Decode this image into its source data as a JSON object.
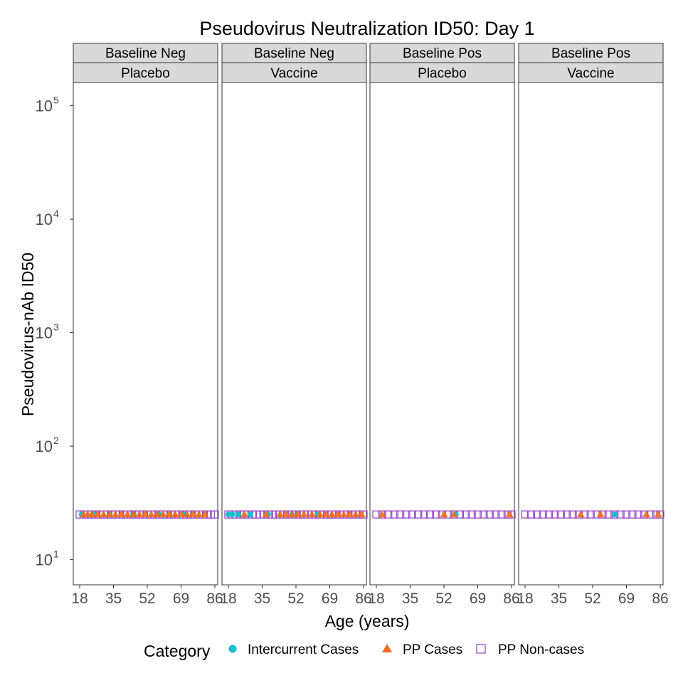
{
  "chart_data": {
    "type": "scatter",
    "title": "Pseudovirus Neutralization ID50: Day 1",
    "xlabel": "Age (years)",
    "ylabel": "Pseudovirus-nAb ID50",
    "x_ticks": [
      18,
      35,
      52,
      69,
      86
    ],
    "xlim": [
      14,
      88
    ],
    "y_scale": "log10",
    "y_ticks": [
      {
        "base": "10",
        "exp": "1",
        "value": 10
      },
      {
        "base": "10",
        "exp": "2",
        "value": 100
      },
      {
        "base": "10",
        "exp": "3",
        "value": 1000
      },
      {
        "base": "10",
        "exp": "4",
        "value": 10000
      },
      {
        "base": "10",
        "exp": "5",
        "value": 100000
      }
    ],
    "ylim": [
      6,
      160000
    ],
    "grid": false,
    "legend": {
      "title": "Category",
      "position": "bottom",
      "entries": [
        {
          "label": "Intercurrent Cases",
          "shape": "circle",
          "color": "#17BECF"
        },
        {
          "label": "PP Cases",
          "shape": "triangle",
          "color": "#F26B1D"
        },
        {
          "label": "PP Non-cases",
          "shape": "open-square",
          "color": "#9B4DCA"
        }
      ]
    },
    "colors": {
      "intercurrent": "#17BECF",
      "pp_cases": "#F26B1D",
      "pp_noncases": "#9B4DCA",
      "strip_fill": "#D9D9D9",
      "panel_border": "#333333"
    },
    "lod_value": 25,
    "panels": [
      {
        "strip_top": "Baseline Neg",
        "strip_bottom": "Placebo",
        "points": {
          "intercurrent": [
            [
              19,
              25
            ],
            [
              25,
              25
            ],
            [
              33,
              25
            ],
            [
              45,
              25
            ],
            [
              58,
              25
            ],
            [
              71,
              25
            ]
          ],
          "pp_cases": [
            [
              20,
              25
            ],
            [
              22,
              25
            ],
            [
              24,
              25
            ],
            [
              27,
              25
            ],
            [
              30,
              25
            ],
            [
              33,
              25
            ],
            [
              36,
              25
            ],
            [
              39,
              25
            ],
            [
              42,
              25
            ],
            [
              45,
              25
            ],
            [
              48,
              25
            ],
            [
              51,
              25
            ],
            [
              54,
              25
            ],
            [
              57,
              25
            ],
            [
              60,
              25
            ],
            [
              63,
              25
            ],
            [
              66,
              25
            ],
            [
              69,
              25
            ],
            [
              72,
              25
            ],
            [
              75,
              25
            ],
            [
              78,
              25
            ],
            [
              81,
              25
            ]
          ],
          "pp_noncases": [
            [
              18,
              25
            ],
            [
              20,
              25
            ],
            [
              22,
              25
            ],
            [
              24,
              25
            ],
            [
              26,
              25
            ],
            [
              28,
              25
            ],
            [
              30,
              25
            ],
            [
              32,
              25
            ],
            [
              34,
              25
            ],
            [
              36,
              25
            ],
            [
              38,
              25
            ],
            [
              40,
              25
            ],
            [
              42,
              25
            ],
            [
              44,
              25
            ],
            [
              46,
              25
            ],
            [
              48,
              25
            ],
            [
              50,
              25
            ],
            [
              52,
              25
            ],
            [
              54,
              25
            ],
            [
              56,
              25
            ],
            [
              58,
              25
            ],
            [
              60,
              25
            ],
            [
              62,
              25
            ],
            [
              64,
              25
            ],
            [
              66,
              25
            ],
            [
              68,
              25
            ],
            [
              70,
              25
            ],
            [
              72,
              25
            ],
            [
              74,
              25
            ],
            [
              76,
              25
            ],
            [
              78,
              25
            ],
            [
              80,
              25
            ],
            [
              82,
              25
            ],
            [
              84,
              25
            ],
            [
              86,
              25
            ]
          ]
        }
      },
      {
        "strip_top": "Baseline Neg",
        "strip_bottom": "Vaccine",
        "points": {
          "intercurrent": [
            [
              18,
              25
            ],
            [
              20,
              25
            ],
            [
              23,
              25
            ],
            [
              29,
              25
            ],
            [
              38,
              25
            ],
            [
              50,
              25
            ],
            [
              63,
              25
            ]
          ],
          "pp_cases": [
            [
              26,
              25
            ],
            [
              37,
              25
            ],
            [
              44,
              25
            ],
            [
              47,
              25
            ],
            [
              50,
              25
            ],
            [
              53,
              25
            ],
            [
              56,
              25
            ],
            [
              60,
              25
            ],
            [
              64,
              25
            ],
            [
              67,
              25
            ],
            [
              70,
              25
            ],
            [
              73,
              25
            ],
            [
              76,
              25
            ],
            [
              79,
              25
            ],
            [
              82,
              25
            ],
            [
              85,
              25
            ]
          ],
          "pp_noncases": [
            [
              18,
              25
            ],
            [
              20,
              25
            ],
            [
              22,
              25
            ],
            [
              24,
              25
            ],
            [
              26,
              25
            ],
            [
              28,
              25
            ],
            [
              30,
              25
            ],
            [
              32,
              25
            ],
            [
              34,
              25
            ],
            [
              36,
              25
            ],
            [
              38,
              25
            ],
            [
              40,
              25
            ],
            [
              42,
              25
            ],
            [
              44,
              25
            ],
            [
              46,
              25
            ],
            [
              48,
              25
            ],
            [
              50,
              25
            ],
            [
              52,
              25
            ],
            [
              54,
              25
            ],
            [
              56,
              25
            ],
            [
              58,
              25
            ],
            [
              60,
              25
            ],
            [
              62,
              25
            ],
            [
              64,
              25
            ],
            [
              66,
              25
            ],
            [
              68,
              25
            ],
            [
              70,
              25
            ],
            [
              72,
              25
            ],
            [
              74,
              25
            ],
            [
              76,
              25
            ],
            [
              78,
              25
            ],
            [
              80,
              25
            ],
            [
              82,
              25
            ],
            [
              84,
              25
            ],
            [
              86,
              25
            ]
          ]
        }
      },
      {
        "strip_top": "Baseline Pos",
        "strip_bottom": "Placebo",
        "points": {
          "intercurrent": [
            [
              58,
              25
            ]
          ],
          "pp_cases": [
            [
              21,
              25
            ],
            [
              52,
              25
            ],
            [
              57,
              25
            ],
            [
              85,
              25
            ]
          ],
          "pp_noncases": [
            [
              18,
              25
            ],
            [
              21,
              25
            ],
            [
              24,
              25
            ],
            [
              27,
              25
            ],
            [
              30,
              25
            ],
            [
              33,
              25
            ],
            [
              36,
              25
            ],
            [
              39,
              25
            ],
            [
              42,
              25
            ],
            [
              45,
              25
            ],
            [
              48,
              25
            ],
            [
              51,
              25
            ],
            [
              54,
              25
            ],
            [
              57,
              25
            ],
            [
              60,
              25
            ],
            [
              63,
              25
            ],
            [
              66,
              25
            ],
            [
              69,
              25
            ],
            [
              72,
              25
            ],
            [
              75,
              25
            ],
            [
              78,
              25
            ],
            [
              81,
              25
            ],
            [
              84,
              25
            ],
            [
              86,
              25
            ]
          ]
        }
      },
      {
        "strip_top": "Baseline Pos",
        "strip_bottom": "Vaccine",
        "points": {
          "intercurrent": [
            [
              63,
              25
            ]
          ],
          "pp_cases": [
            [
              46,
              25
            ],
            [
              56,
              25
            ],
            [
              79,
              25
            ],
            [
              85,
              25
            ]
          ],
          "pp_noncases": [
            [
              18,
              25
            ],
            [
              21,
              25
            ],
            [
              24,
              25
            ],
            [
              27,
              25
            ],
            [
              30,
              25
            ],
            [
              33,
              25
            ],
            [
              36,
              25
            ],
            [
              39,
              25
            ],
            [
              42,
              25
            ],
            [
              45,
              25
            ],
            [
              48,
              25
            ],
            [
              51,
              25
            ],
            [
              54,
              25
            ],
            [
              57,
              25
            ],
            [
              60,
              25
            ],
            [
              63,
              25
            ],
            [
              66,
              25
            ],
            [
              69,
              25
            ],
            [
              72,
              25
            ],
            [
              75,
              25
            ],
            [
              78,
              25
            ],
            [
              81,
              25
            ],
            [
              84,
              25
            ],
            [
              86,
              25
            ]
          ]
        }
      }
    ]
  }
}
